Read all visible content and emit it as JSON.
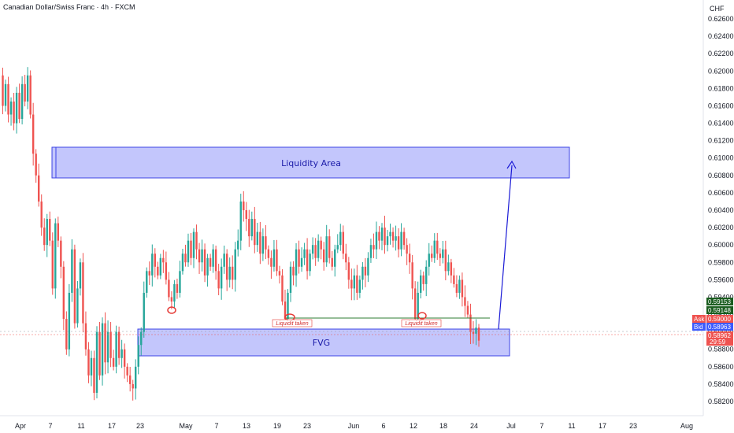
{
  "header": {
    "title": "Canadian Dollar/Swiss Franc · 4h · FXCM"
  },
  "chart_data": {
    "type": "candlestick",
    "symbol": "CADCHF",
    "timeframe": "4h",
    "currency_label": "CHF",
    "ylim": [
      0.581,
      0.6275
    ],
    "y_ticks": [
      "0.62600",
      "0.62400",
      "0.62200",
      "0.62000",
      "0.61800",
      "0.61600",
      "0.61400",
      "0.61200",
      "0.61000",
      "0.60800",
      "0.60600",
      "0.60400",
      "0.60200",
      "0.60000",
      "0.59800",
      "0.59600",
      "0.59400",
      "0.59200",
      "0.59000",
      "0.58800",
      "0.58600",
      "0.58400",
      "0.58200"
    ],
    "x_ticks": [
      "Apr",
      "7",
      "11",
      "17",
      "23",
      "May",
      "7",
      "13",
      "19",
      "23",
      "Jun",
      "6",
      "12",
      "18",
      "24",
      "Jul",
      "7",
      "11",
      "17",
      "23",
      "Aug"
    ],
    "price_path": [
      [
        0.6195,
        0.616,
        0.6185,
        0.615,
        0.6165,
        0.614,
        0.6175,
        0.6145,
        0.6185,
        0.6165,
        0.6195,
        0.615,
        0.6105,
        0.608,
        0.605,
        0.602,
        0.6,
        0.603,
        0.6005,
        0.595,
        0.6025,
        0.6005,
        0.5975,
        0.5915,
        0.588,
        0.5945,
        0.5995,
        0.591,
        0.595,
        0.598,
        0.591,
        0.588,
        0.585,
        0.587,
        0.583,
        0.59,
        0.585,
        0.591,
        0.5865,
        0.59,
        0.587,
        0.586,
        0.59,
        0.587,
        0.588,
        0.586,
        0.585,
        0.584,
        0.5835,
        0.586,
        0.5885,
        0.59,
        0.5945,
        0.597,
        0.5965,
        0.599,
        0.5975,
        0.5965,
        0.5985,
        0.598,
        0.596,
        0.594,
        0.5935,
        0.5955,
        0.5945,
        0.597,
        0.599,
        0.598,
        0.6005,
        0.5985,
        0.6015,
        0.5995,
        0.598,
        0.5995,
        0.5965,
        0.5985,
        0.5975,
        0.5995,
        0.597,
        0.595,
        0.5975,
        0.599,
        0.596,
        0.5975,
        0.596,
        0.5995,
        0.6005,
        0.605,
        0.604,
        0.603,
        0.601,
        0.603,
        0.6,
        0.6015,
        0.599,
        0.601,
        0.5995,
        0.5985,
        0.5975,
        0.5995,
        0.597,
        0.5965,
        0.5935,
        0.5915,
        0.5945,
        0.5975,
        0.5965,
        0.5995,
        0.5975,
        0.5985,
        0.5995,
        0.597,
        0.599,
        0.6,
        0.5985,
        0.6005,
        0.5995,
        0.598,
        0.601,
        0.5985,
        0.5975,
        0.5995,
        0.6,
        0.6015,
        0.599,
        0.598,
        0.596,
        0.595,
        0.5965,
        0.5945,
        0.596,
        0.5975,
        0.5965,
        0.5985,
        0.6,
        0.5995,
        0.6015,
        0.6005,
        0.602,
        0.6,
        0.601,
        0.6015,
        0.6005,
        0.601,
        0.5995,
        0.6015,
        0.6,
        0.599,
        0.598,
        0.595,
        0.5915,
        0.5945,
        0.5965,
        0.5955,
        0.5975,
        0.599,
        0.5985,
        0.6005,
        0.599,
        0.5985,
        0.5995,
        0.597,
        0.598,
        0.5965,
        0.5955,
        0.5945,
        0.596,
        0.594,
        0.593,
        0.592,
        0.59,
        0.5898,
        0.5905,
        0.589
      ],
      []
    ],
    "last_price": "0.58962",
    "markers": [
      "0.59153",
      "0.59148"
    ],
    "ask": {
      "label": "Ask",
      "value": "0.59000"
    },
    "bid": {
      "label": "Bid",
      "value": "0.58963"
    },
    "countdown": "29:59",
    "annotations": {
      "liquidity_area": "Liquidity Area",
      "fvg": "FVG",
      "liquidity_taken": "Liquidit taken"
    },
    "colors": {
      "up": "#26a69a",
      "down": "#ef5350",
      "zone_fill": "#b8bcfb",
      "zone_border": "#3c44e6",
      "arrow": "#1a1ad6"
    }
  }
}
